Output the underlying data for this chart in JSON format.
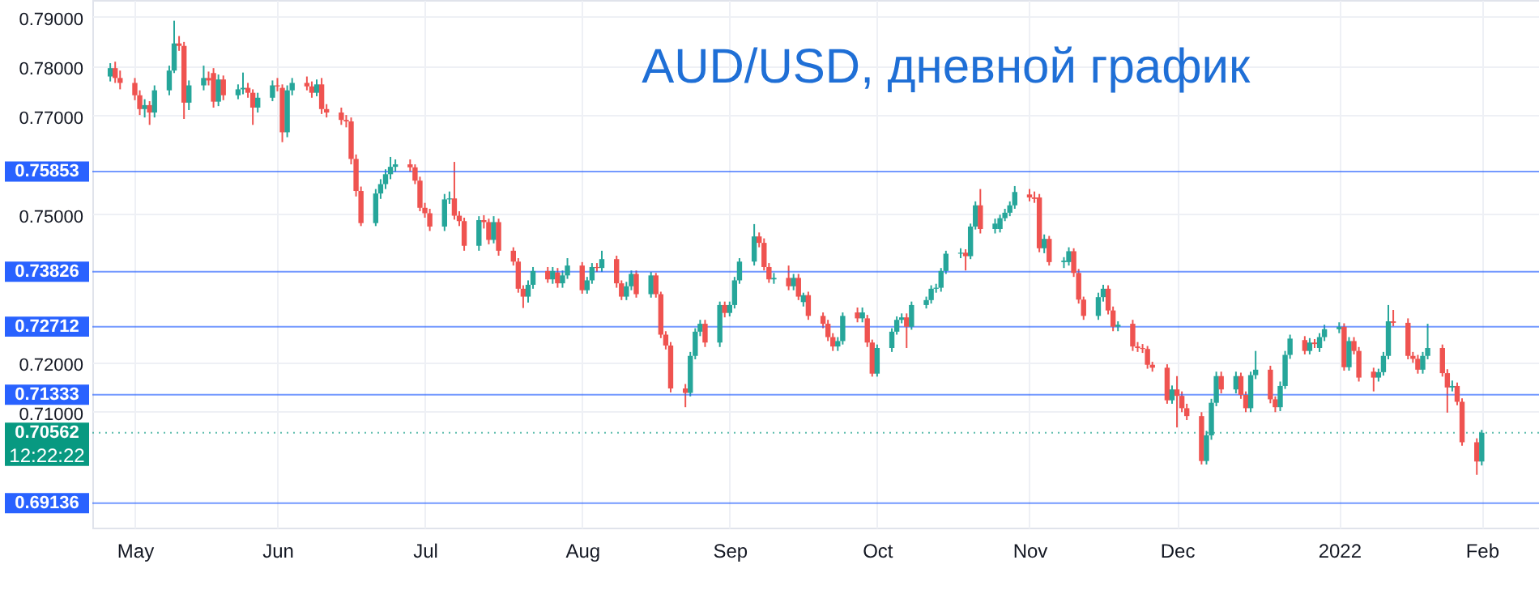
{
  "chart_data": {
    "type": "candlestick",
    "title": "AUD/USD, дневной график",
    "x": [
      "2021-04-28",
      "2021-04-29",
      "2021-04-30",
      "2021-05-03",
      "2021-05-04",
      "2021-05-05",
      "2021-05-06",
      "2021-05-07",
      "2021-05-10",
      "2021-05-11",
      "2021-05-12",
      "2021-05-13",
      "2021-05-14",
      "2021-05-17",
      "2021-05-18",
      "2021-05-19",
      "2021-05-20",
      "2021-05-21",
      "2021-05-24",
      "2021-05-25",
      "2021-05-26",
      "2021-05-27",
      "2021-05-28",
      "2021-05-31",
      "2021-06-01",
      "2021-06-02",
      "2021-06-03",
      "2021-06-04",
      "2021-06-07",
      "2021-06-08",
      "2021-06-09",
      "2021-06-10",
      "2021-06-11",
      "2021-06-14",
      "2021-06-15",
      "2021-06-16",
      "2021-06-17",
      "2021-06-18",
      "2021-06-21",
      "2021-06-22",
      "2021-06-23",
      "2021-06-24",
      "2021-06-25",
      "2021-06-28",
      "2021-06-29",
      "2021-06-30",
      "2021-07-01",
      "2021-07-02",
      "2021-07-05",
      "2021-07-06",
      "2021-07-07",
      "2021-07-08",
      "2021-07-09",
      "2021-07-12",
      "2021-07-13",
      "2021-07-14",
      "2021-07-15",
      "2021-07-16",
      "2021-07-19",
      "2021-07-20",
      "2021-07-21",
      "2021-07-22",
      "2021-07-23",
      "2021-07-26",
      "2021-07-27",
      "2021-07-28",
      "2021-07-29",
      "2021-07-30",
      "2021-08-02",
      "2021-08-03",
      "2021-08-04",
      "2021-08-05",
      "2021-08-06",
      "2021-08-09",
      "2021-08-10",
      "2021-08-11",
      "2021-08-12",
      "2021-08-13",
      "2021-08-16",
      "2021-08-17",
      "2021-08-18",
      "2021-08-19",
      "2021-08-20",
      "2021-08-23",
      "2021-08-24",
      "2021-08-25",
      "2021-08-26",
      "2021-08-27",
      "2021-08-30",
      "2021-08-31",
      "2021-09-01",
      "2021-09-02",
      "2021-09-03",
      "2021-09-06",
      "2021-09-07",
      "2021-09-08",
      "2021-09-09",
      "2021-09-10",
      "2021-09-13",
      "2021-09-14",
      "2021-09-15",
      "2021-09-16",
      "2021-09-17",
      "2021-09-20",
      "2021-09-21",
      "2021-09-22",
      "2021-09-23",
      "2021-09-24",
      "2021-09-27",
      "2021-09-28",
      "2021-09-29",
      "2021-09-30",
      "2021-10-01",
      "2021-10-04",
      "2021-10-05",
      "2021-10-06",
      "2021-10-07",
      "2021-10-08",
      "2021-10-11",
      "2021-10-12",
      "2021-10-13",
      "2021-10-14",
      "2021-10-15",
      "2021-10-18",
      "2021-10-19",
      "2021-10-20",
      "2021-10-21",
      "2021-10-22",
      "2021-10-25",
      "2021-10-26",
      "2021-10-27",
      "2021-10-28",
      "2021-10-29",
      "2021-11-01",
      "2021-11-02",
      "2021-11-03",
      "2021-11-04",
      "2021-11-05",
      "2021-11-08",
      "2021-11-09",
      "2021-11-10",
      "2021-11-11",
      "2021-11-12",
      "2021-11-15",
      "2021-11-16",
      "2021-11-17",
      "2021-11-18",
      "2021-11-19",
      "2021-11-22",
      "2021-11-23",
      "2021-11-24",
      "2021-11-25",
      "2021-11-26",
      "2021-11-29",
      "2021-11-30",
      "2021-12-01",
      "2021-12-02",
      "2021-12-03",
      "2021-12-06",
      "2021-12-07",
      "2021-12-08",
      "2021-12-09",
      "2021-12-10",
      "2021-12-13",
      "2021-12-14",
      "2021-12-15",
      "2021-12-16",
      "2021-12-17",
      "2021-12-20",
      "2021-12-21",
      "2021-12-22",
      "2021-12-23",
      "2021-12-24",
      "2021-12-27",
      "2021-12-28",
      "2021-12-29",
      "2021-12-30",
      "2021-12-31",
      "2022-01-03",
      "2022-01-04",
      "2022-01-05",
      "2022-01-06",
      "2022-01-07",
      "2022-01-10",
      "2022-01-11",
      "2022-01-12",
      "2022-01-13",
      "2022-01-14",
      "2022-01-17",
      "2022-01-18",
      "2022-01-19",
      "2022-01-20",
      "2022-01-21",
      "2022-01-24",
      "2022-01-25",
      "2022-01-26",
      "2022-01-27",
      "2022-01-28",
      "2022-01-31",
      "2022-02-01"
    ],
    "ohlc": [
      [
        0.7778,
        0.7805,
        0.7768,
        0.7795
      ],
      [
        0.7795,
        0.7808,
        0.7765,
        0.7775
      ],
      [
        0.7775,
        0.779,
        0.7752,
        0.7765
      ],
      [
        0.7765,
        0.7775,
        0.773,
        0.774
      ],
      [
        0.774,
        0.775,
        0.77,
        0.7712
      ],
      [
        0.7712,
        0.7732,
        0.7695,
        0.772
      ],
      [
        0.772,
        0.7728,
        0.768,
        0.7705
      ],
      [
        0.7705,
        0.776,
        0.7695,
        0.775
      ],
      [
        0.775,
        0.78,
        0.774,
        0.779
      ],
      [
        0.779,
        0.7891,
        0.7785,
        0.7845
      ],
      [
        0.7845,
        0.786,
        0.783,
        0.784
      ],
      [
        0.784,
        0.7848,
        0.7692,
        0.7725
      ],
      [
        0.7725,
        0.777,
        0.771,
        0.776
      ],
      [
        0.776,
        0.78,
        0.775,
        0.7775
      ],
      [
        0.7775,
        0.7788,
        0.776,
        0.777
      ],
      [
        0.7785,
        0.7795,
        0.7715,
        0.7727
      ],
      [
        0.7727,
        0.7782,
        0.7718,
        0.7772
      ],
      [
        0.7772,
        0.778,
        0.773,
        0.774
      ],
      [
        0.774,
        0.7762,
        0.7732,
        0.7752
      ],
      [
        0.7752,
        0.7786,
        0.7742,
        0.7755
      ],
      [
        0.7755,
        0.7765,
        0.7735,
        0.7745
      ],
      [
        0.7745,
        0.7752,
        0.768,
        0.7715
      ],
      [
        0.7715,
        0.7745,
        0.7705,
        0.7735
      ],
      [
        0.7735,
        0.777,
        0.7728,
        0.776
      ],
      [
        0.776,
        0.7775,
        0.7748,
        0.7758
      ],
      [
        0.7755,
        0.7762,
        0.7645,
        0.7665
      ],
      [
        0.7665,
        0.776,
        0.7655,
        0.775
      ],
      [
        0.775,
        0.7775,
        0.774,
        0.7765
      ],
      [
        0.7765,
        0.7778,
        0.775,
        0.7758
      ],
      [
        0.7758,
        0.7768,
        0.7735,
        0.7745
      ],
      [
        0.7745,
        0.7772,
        0.7738,
        0.7762
      ],
      [
        0.7762,
        0.7775,
        0.7702,
        0.7712
      ],
      [
        0.7712,
        0.7722,
        0.7695,
        0.7705
      ],
      [
        0.7705,
        0.7715,
        0.768,
        0.769
      ],
      [
        0.769,
        0.77,
        0.7675,
        0.7687
      ],
      [
        0.7687,
        0.7695,
        0.76,
        0.7611
      ],
      [
        0.7611,
        0.762,
        0.7535,
        0.7546
      ],
      [
        0.7546,
        0.7555,
        0.7475,
        0.7481
      ],
      [
        0.7481,
        0.755,
        0.7475,
        0.7541
      ],
      [
        0.7541,
        0.757,
        0.753,
        0.756
      ],
      [
        0.756,
        0.759,
        0.755,
        0.758
      ],
      [
        0.758,
        0.7615,
        0.757,
        0.7595
      ],
      [
        0.7595,
        0.761,
        0.7585,
        0.76
      ],
      [
        0.76,
        0.761,
        0.7585,
        0.7594
      ],
      [
        0.7594,
        0.76,
        0.756,
        0.7567
      ],
      [
        0.7567,
        0.7575,
        0.7505,
        0.7512
      ],
      [
        0.7512,
        0.7522,
        0.7492,
        0.7501
      ],
      [
        0.7501,
        0.751,
        0.7465,
        0.7474
      ],
      [
        0.7474,
        0.754,
        0.7465,
        0.7529
      ],
      [
        0.7529,
        0.7545,
        0.752,
        0.7531
      ],
      [
        0.7531,
        0.7605,
        0.7488,
        0.7496
      ],
      [
        0.7496,
        0.7505,
        0.7475,
        0.7485
      ],
      [
        0.7485,
        0.7492,
        0.7425,
        0.7435
      ],
      [
        0.7435,
        0.7495,
        0.7425,
        0.7487
      ],
      [
        0.7487,
        0.7497,
        0.747,
        0.7483
      ],
      [
        0.7483,
        0.749,
        0.7438,
        0.7447
      ],
      [
        0.7447,
        0.7495,
        0.744,
        0.7483
      ],
      [
        0.7483,
        0.749,
        0.7415,
        0.7425
      ],
      [
        0.7425,
        0.7432,
        0.7395,
        0.7403
      ],
      [
        0.7403,
        0.741,
        0.734,
        0.7348
      ],
      [
        0.7348,
        0.7355,
        0.7309,
        0.7332
      ],
      [
        0.7332,
        0.7365,
        0.732,
        0.7356
      ],
      [
        0.7356,
        0.7392,
        0.7348,
        0.7384
      ],
      [
        0.7384,
        0.7392,
        0.736,
        0.7367
      ],
      [
        0.7367,
        0.7392,
        0.7358,
        0.7384
      ],
      [
        0.7381,
        0.739,
        0.735,
        0.7359
      ],
      [
        0.7359,
        0.7385,
        0.735,
        0.7375
      ],
      [
        0.7375,
        0.741,
        0.7368,
        0.7395
      ],
      [
        0.7395,
        0.7402,
        0.7338,
        0.7345
      ],
      [
        0.7345,
        0.7372,
        0.7338,
        0.7365
      ],
      [
        0.7365,
        0.74,
        0.7358,
        0.7392
      ],
      [
        0.7392,
        0.74,
        0.7382,
        0.739
      ],
      [
        0.739,
        0.7425,
        0.7382,
        0.7408
      ],
      [
        0.7408,
        0.7415,
        0.735,
        0.7359
      ],
      [
        0.7359,
        0.7365,
        0.7325,
        0.7332
      ],
      [
        0.7332,
        0.7362,
        0.7325,
        0.7353
      ],
      [
        0.7353,
        0.7385,
        0.7345,
        0.7378
      ],
      [
        0.7378,
        0.7385,
        0.733,
        0.7337
      ],
      [
        0.7337,
        0.7382,
        0.733,
        0.7375
      ],
      [
        0.7375,
        0.738,
        0.733,
        0.7337
      ],
      [
        0.7337,
        0.7342,
        0.7248,
        0.7255
      ],
      [
        0.7255,
        0.7262,
        0.7225,
        0.7233
      ],
      [
        0.7233,
        0.724,
        0.7138,
        0.7146
      ],
      [
        0.7146,
        0.7155,
        0.7108,
        0.7137
      ],
      [
        0.7137,
        0.722,
        0.713,
        0.7212
      ],
      [
        0.7212,
        0.7268,
        0.7205,
        0.7261
      ],
      [
        0.7261,
        0.7285,
        0.7252,
        0.7277
      ],
      [
        0.7277,
        0.7285,
        0.723,
        0.7239
      ],
      [
        0.7239,
        0.7322,
        0.723,
        0.7315
      ],
      [
        0.7315,
        0.7322,
        0.729,
        0.7299
      ],
      [
        0.7299,
        0.7322,
        0.7292,
        0.7315
      ],
      [
        0.7315,
        0.7372,
        0.7308,
        0.7365
      ],
      [
        0.7365,
        0.741,
        0.7358,
        0.7403
      ],
      [
        0.7403,
        0.7479,
        0.7395,
        0.7454
      ],
      [
        0.7454,
        0.7462,
        0.7432,
        0.7441
      ],
      [
        0.7441,
        0.745,
        0.7385,
        0.7392
      ],
      [
        0.7392,
        0.74,
        0.736,
        0.7367
      ],
      [
        0.7367,
        0.738,
        0.7358,
        0.737
      ],
      [
        0.737,
        0.7395,
        0.7345,
        0.7353
      ],
      [
        0.7353,
        0.7378,
        0.7345,
        0.737
      ],
      [
        0.737,
        0.7378,
        0.7325,
        0.7332
      ],
      [
        0.7321,
        0.734,
        0.7312,
        0.7335
      ],
      [
        0.7335,
        0.7342,
        0.7285,
        0.7293
      ],
      [
        0.7293,
        0.73,
        0.7268,
        0.7277
      ],
      [
        0.7277,
        0.7285,
        0.7242,
        0.725
      ],
      [
        0.725,
        0.7258,
        0.7222,
        0.7231
      ],
      [
        0.7231,
        0.725,
        0.7222,
        0.7242
      ],
      [
        0.7242,
        0.73,
        0.7235,
        0.7293
      ],
      [
        0.73,
        0.731,
        0.728,
        0.7288
      ],
      [
        0.7288,
        0.731,
        0.728,
        0.73
      ],
      [
        0.7288,
        0.7295,
        0.723,
        0.7239
      ],
      [
        0.7239,
        0.7245,
        0.717,
        0.7176
      ],
      [
        0.7176,
        0.7235,
        0.717,
        0.7228
      ],
      [
        0.7228,
        0.7268,
        0.722,
        0.7261
      ],
      [
        0.7261,
        0.7292,
        0.7255,
        0.7285
      ],
      [
        0.7285,
        0.7298,
        0.7278,
        0.729
      ],
      [
        0.729,
        0.7298,
        0.7228,
        0.7271
      ],
      [
        0.7271,
        0.7322,
        0.7265,
        0.7315
      ],
      [
        0.7315,
        0.7332,
        0.7308,
        0.7325
      ],
      [
        0.7325,
        0.7355,
        0.7318,
        0.7348
      ],
      [
        0.7348,
        0.7358,
        0.734,
        0.735
      ],
      [
        0.735,
        0.739,
        0.7342,
        0.7384
      ],
      [
        0.7384,
        0.7425,
        0.7378,
        0.7419
      ],
      [
        0.7419,
        0.743,
        0.741,
        0.7421
      ],
      [
        0.7421,
        0.7428,
        0.7385,
        0.7414
      ],
      [
        0.7414,
        0.748,
        0.7408,
        0.7474
      ],
      [
        0.7474,
        0.7525,
        0.7468,
        0.7517
      ],
      [
        0.7517,
        0.755,
        0.746,
        0.7469
      ],
      [
        0.7469,
        0.749,
        0.746,
        0.748
      ],
      [
        0.7469,
        0.7498,
        0.7462,
        0.7491
      ],
      [
        0.7491,
        0.751,
        0.7485,
        0.7502
      ],
      [
        0.7502,
        0.7525,
        0.7495,
        0.7517
      ],
      [
        0.7517,
        0.7556,
        0.751,
        0.7544
      ],
      [
        0.7539,
        0.755,
        0.7525,
        0.7533
      ],
      [
        0.7533,
        0.7545,
        0.7522,
        0.753
      ],
      [
        0.7533,
        0.754,
        0.7422,
        0.743
      ],
      [
        0.743,
        0.7458,
        0.742,
        0.7449
      ],
      [
        0.7449,
        0.7455,
        0.7395,
        0.7402
      ],
      [
        0.7402,
        0.7412,
        0.739,
        0.7405
      ],
      [
        0.7402,
        0.7432,
        0.7395,
        0.7424
      ],
      [
        0.7424,
        0.743,
        0.7372,
        0.738
      ],
      [
        0.738,
        0.7388,
        0.7318,
        0.7326
      ],
      [
        0.7326,
        0.7332,
        0.7285,
        0.7293
      ],
      [
        0.7293,
        0.734,
        0.7285,
        0.7331
      ],
      [
        0.7331,
        0.7356,
        0.7322,
        0.7348
      ],
      [
        0.7348,
        0.7355,
        0.7296,
        0.7304
      ],
      [
        0.7304,
        0.7312,
        0.7262,
        0.7271
      ],
      [
        0.7271,
        0.7282,
        0.7262,
        0.7275
      ],
      [
        0.7277,
        0.7285,
        0.7222,
        0.7231
      ],
      [
        0.7231,
        0.724,
        0.722,
        0.7228
      ],
      [
        0.7228,
        0.7236,
        0.7218,
        0.7226
      ],
      [
        0.7226,
        0.7232,
        0.7186,
        0.7194
      ],
      [
        0.7194,
        0.72,
        0.718,
        0.7188
      ],
      [
        0.7188,
        0.7195,
        0.7115,
        0.7122
      ],
      [
        0.7122,
        0.7152,
        0.7115,
        0.7144
      ],
      [
        0.7144,
        0.7171,
        0.7067,
        0.7131
      ],
      [
        0.7131,
        0.714,
        0.7098,
        0.7106
      ],
      [
        0.7106,
        0.7115,
        0.7082,
        0.709
      ],
      [
        0.709,
        0.7098,
        0.6992,
        0.6999
      ],
      [
        0.6999,
        0.706,
        0.6992,
        0.7051
      ],
      [
        0.7051,
        0.7125,
        0.7042,
        0.7117
      ],
      [
        0.7117,
        0.718,
        0.711,
        0.7171
      ],
      [
        0.7171,
        0.718,
        0.7136,
        0.7144
      ],
      [
        0.7144,
        0.718,
        0.7136,
        0.7171
      ],
      [
        0.7171,
        0.7178,
        0.7125,
        0.7133
      ],
      [
        0.7133,
        0.714,
        0.7098,
        0.7106
      ],
      [
        0.7106,
        0.718,
        0.7098,
        0.7173
      ],
      [
        0.7173,
        0.7222,
        0.7165,
        0.7184
      ],
      [
        0.7184,
        0.7192,
        0.7116,
        0.7124
      ],
      [
        0.7124,
        0.713,
        0.7098,
        0.7108
      ],
      [
        0.7108,
        0.716,
        0.71,
        0.7151
      ],
      [
        0.7151,
        0.7222,
        0.7145,
        0.7214
      ],
      [
        0.7214,
        0.7255,
        0.7206,
        0.7247
      ],
      [
        0.7244,
        0.7252,
        0.7215,
        0.7222
      ],
      [
        0.7222,
        0.7248,
        0.7215,
        0.7239
      ],
      [
        0.7239,
        0.7246,
        0.7228,
        0.7236
      ],
      [
        0.7228,
        0.7258,
        0.722,
        0.725
      ],
      [
        0.725,
        0.7275,
        0.7242,
        0.7266
      ],
      [
        0.7266,
        0.728,
        0.7258,
        0.7271
      ],
      [
        0.7271,
        0.7278,
        0.7182,
        0.7189
      ],
      [
        0.7189,
        0.725,
        0.7182,
        0.7242
      ],
      [
        0.7242,
        0.725,
        0.7215,
        0.7222
      ],
      [
        0.7222,
        0.723,
        0.716,
        0.7168
      ],
      [
        0.718,
        0.7188,
        0.714,
        0.7168
      ],
      [
        0.7168,
        0.7186,
        0.716,
        0.7179
      ],
      [
        0.7179,
        0.722,
        0.7172,
        0.7212
      ],
      [
        0.7212,
        0.7315,
        0.7205,
        0.7282
      ],
      [
        0.7282,
        0.7305,
        0.7272,
        0.7279
      ],
      [
        0.7279,
        0.7288,
        0.7205,
        0.7212
      ],
      [
        0.7212,
        0.722,
        0.7198,
        0.7206
      ],
      [
        0.7206,
        0.7214,
        0.7176,
        0.7184
      ],
      [
        0.7184,
        0.722,
        0.7176,
        0.7212
      ],
      [
        0.7212,
        0.7277,
        0.7205,
        0.7228
      ],
      [
        0.7228,
        0.7235,
        0.717,
        0.7177
      ],
      [
        0.7177,
        0.7185,
        0.7097,
        0.7148
      ],
      [
        0.7148,
        0.7162,
        0.714,
        0.7151
      ],
      [
        0.7151,
        0.7158,
        0.7112,
        0.7119
      ],
      [
        0.7119,
        0.7126,
        0.703,
        0.7037
      ],
      [
        0.7037,
        0.7045,
        0.6971,
        0.6998
      ],
      [
        0.6998,
        0.7062,
        0.699,
        0.70562
      ]
    ],
    "colors": [
      "#26a69a",
      "#ef5350",
      "#ef5350",
      "#ef5350",
      "#ef5350",
      "#26a69a",
      "#ef5350",
      "#26a69a",
      "#26a69a",
      "#26a69a",
      "#ef5350",
      "#ef5350",
      "#26a69a",
      "#26a69a",
      "#ef5350",
      "#ef5350",
      "#26a69a",
      "#ef5350",
      "#26a69a",
      "#26a69a",
      "#ef5350",
      "#ef5350",
      "#26a69a",
      "#26a69a",
      "#ef5350",
      "#ef5350",
      "#26a69a",
      "#26a69a",
      "#ef5350",
      "#ef5350",
      "#26a69a",
      "#ef5350",
      "#ef5350",
      "#ef5350",
      "#ef5350",
      "#ef5350",
      "#ef5350",
      "#ef5350",
      "#26a69a",
      "#26a69a",
      "#26a69a",
      "#26a69a",
      "#26a69a",
      "#ef5350",
      "#ef5350",
      "#ef5350",
      "#ef5350",
      "#ef5350",
      "#26a69a",
      "#26a69a",
      "#ef5350",
      "#ef5350",
      "#ef5350",
      "#26a69a",
      "#ef5350",
      "#ef5350",
      "#26a69a",
      "#ef5350",
      "#ef5350",
      "#ef5350",
      "#ef5350",
      "#26a69a",
      "#26a69a",
      "#ef5350",
      "#26a69a",
      "#ef5350",
      "#26a69a",
      "#26a69a",
      "#ef5350",
      "#26a69a",
      "#26a69a",
      "#ef5350",
      "#26a69a",
      "#ef5350",
      "#ef5350",
      "#26a69a",
      "#26a69a",
      "#ef5350",
      "#26a69a",
      "#ef5350",
      "#ef5350",
      "#ef5350",
      "#ef5350",
      "#ef5350",
      "#26a69a",
      "#26a69a",
      "#26a69a",
      "#ef5350",
      "#26a69a",
      "#ef5350",
      "#26a69a",
      "#26a69a",
      "#26a69a",
      "#26a69a",
      "#ef5350",
      "#ef5350",
      "#ef5350",
      "#26a69a",
      "#ef5350",
      "#26a69a",
      "#ef5350",
      "#26a69a",
      "#ef5350",
      "#ef5350",
      "#ef5350",
      "#ef5350",
      "#26a69a",
      "#26a69a",
      "#ef5350",
      "#26a69a",
      "#ef5350",
      "#ef5350",
      "#26a69a",
      "#26a69a",
      "#26a69a",
      "#26a69a",
      "#ef5350",
      "#26a69a",
      "#26a69a",
      "#26a69a",
      "#26a69a",
      "#26a69a",
      "#26a69a",
      "#26a69a",
      "#ef5350",
      "#26a69a",
      "#26a69a",
      "#ef5350",
      "#26a69a",
      "#26a69a",
      "#26a69a",
      "#26a69a",
      "#26a69a",
      "#ef5350",
      "#ef5350",
      "#ef5350",
      "#26a69a",
      "#ef5350",
      "#26a69a",
      "#26a69a",
      "#ef5350",
      "#ef5350",
      "#ef5350",
      "#26a69a",
      "#26a69a",
      "#ef5350",
      "#ef5350",
      "#26a69a",
      "#ef5350",
      "#ef5350",
      "#ef5350",
      "#ef5350",
      "#ef5350",
      "#ef5350",
      "#26a69a",
      "#ef5350",
      "#ef5350",
      "#ef5350",
      "#ef5350",
      "#26a69a",
      "#26a69a",
      "#26a69a",
      "#ef5350",
      "#26a69a",
      "#ef5350",
      "#ef5350",
      "#26a69a",
      "#26a69a",
      "#ef5350",
      "#ef5350",
      "#26a69a",
      "#26a69a",
      "#26a69a",
      "#ef5350",
      "#26a69a",
      "#ef5350",
      "#26a69a",
      "#26a69a",
      "#26a69a",
      "#ef5350",
      "#26a69a",
      "#ef5350",
      "#ef5350",
      "#ef5350",
      "#26a69a",
      "#26a69a",
      "#26a69a",
      "#ef5350",
      "#ef5350",
      "#ef5350",
      "#ef5350",
      "#26a69a",
      "#26a69a",
      "#ef5350",
      "#ef5350",
      "#26a69a",
      "#ef5350",
      "#ef5350",
      "#ef5350",
      "#26a69a"
    ],
    "xlim": [
      "2021-04-26",
      "2022-02-11"
    ],
    "xticks": [
      {
        "value": "2021-05-03",
        "label": "May"
      },
      {
        "value": "2021-06-01",
        "label": "Jun"
      },
      {
        "value": "2021-07-01",
        "label": "Jul"
      },
      {
        "value": "2021-08-02",
        "label": "Aug"
      },
      {
        "value": "2021-09-01",
        "label": "Sep"
      },
      {
        "value": "2021-10-01",
        "label": "Oct"
      },
      {
        "value": "2021-11-01",
        "label": "Nov"
      },
      {
        "value": "2021-12-01",
        "label": "Dec"
      },
      {
        "value": "2022-01-03",
        "label": "2022"
      },
      {
        "value": "2022-02-01",
        "label": "Feb"
      }
    ],
    "ylim": [
      0.6864,
      0.7933
    ],
    "yticks": [
      {
        "value": 0.79,
        "label": "0.79000"
      },
      {
        "value": 0.78,
        "label": "0.78000"
      },
      {
        "value": 0.77,
        "label": "0.77000"
      },
      {
        "value": 0.75,
        "label": "0.75000"
      },
      {
        "value": 0.72,
        "label": "0.72000"
      },
      {
        "value": 0.71,
        "label": "0.71000"
      }
    ],
    "grid": true,
    "ref_lines": [
      {
        "axis": "y",
        "value": 0.75853,
        "label": "0.75853",
        "color": "#2962ff"
      },
      {
        "axis": "y",
        "value": 0.73826,
        "label": "0.73826",
        "color": "#2962ff"
      },
      {
        "axis": "y",
        "value": 0.72712,
        "label": "0.72712",
        "color": "#2962ff"
      },
      {
        "axis": "y",
        "value": 0.71333,
        "label": "0.71333",
        "color": "#2962ff"
      },
      {
        "axis": "y",
        "value": 0.69136,
        "label": "0.69136",
        "color": "#2962ff"
      },
      {
        "axis": "y",
        "value": 0.70562,
        "label": "0.70562",
        "color": "#089981",
        "line_style": "dotted"
      }
    ],
    "annotations": [
      "12:22:22"
    ]
  }
}
